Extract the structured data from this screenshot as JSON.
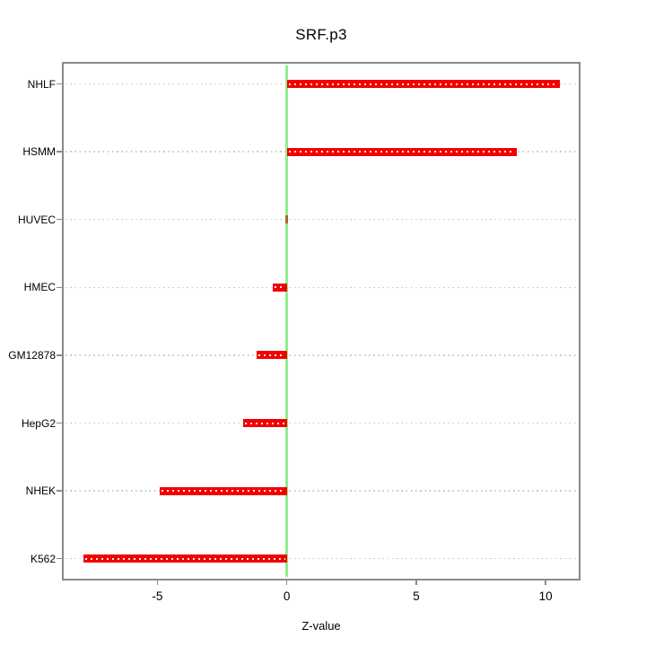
{
  "figure": {
    "title": "SRF.p3",
    "xlabel": "Z-value"
  },
  "chart_data": {
    "type": "bar",
    "orientation": "horizontal",
    "title": "SRF.p3",
    "xlabel": "Z-value",
    "ylabel": "",
    "categories": [
      "NHLF",
      "HSMM",
      "HUVEC",
      "HMEC",
      "GM12878",
      "HepG2",
      "NHEK",
      "K562"
    ],
    "values": [
      10.55,
      8.9,
      0.05,
      -0.55,
      -1.15,
      -1.7,
      -4.9,
      -7.85
    ],
    "xlim": [
      -8.62,
      11.28
    ],
    "xticks": [
      -5,
      0,
      5,
      10
    ],
    "zero_line_value": 0,
    "grid": "horizontal-dotted",
    "legend": "none",
    "colors": {
      "bar": "#f20000",
      "bar_dots": "#ffffff",
      "zero_line": "#90ee90",
      "grid_line": "#c9c9c9",
      "axis_border": "#8a8a8a",
      "tiny_stub": "#a9662e",
      "text": "#000000",
      "background": "#ffffff"
    }
  }
}
